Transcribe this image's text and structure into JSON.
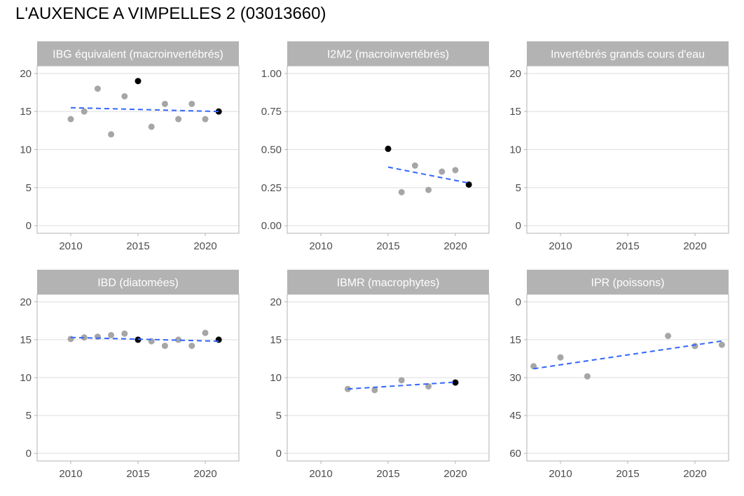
{
  "title": "L'AUXENCE A VIMPELLES 2 (03013660)",
  "colors": {
    "strip_bg": "#b3b3b3",
    "panel_border": "#b3b3b3",
    "grid": "#dedede",
    "point_gray": "#a6a6a6",
    "point_black": "#000000",
    "trend": "#3366ff"
  },
  "chart_data": [
    {
      "type": "scatter",
      "title": "IBG équivalent (macroinvertébrés)",
      "xlim": [
        2007.5,
        2022.5
      ],
      "ylim": [
        -1,
        21
      ],
      "xticks": [
        2010,
        2015,
        2020
      ],
      "yticks": [
        0,
        5,
        10,
        15,
        20
      ],
      "reverse_y": false,
      "points": [
        {
          "x": 2010,
          "y": 14,
          "highlight": false
        },
        {
          "x": 2011,
          "y": 15,
          "highlight": false
        },
        {
          "x": 2012,
          "y": 18,
          "highlight": false
        },
        {
          "x": 2013,
          "y": 12,
          "highlight": false
        },
        {
          "x": 2014,
          "y": 17,
          "highlight": false
        },
        {
          "x": 2015,
          "y": 19,
          "highlight": true
        },
        {
          "x": 2016,
          "y": 13,
          "highlight": false
        },
        {
          "x": 2017,
          "y": 16,
          "highlight": false
        },
        {
          "x": 2018,
          "y": 14,
          "highlight": false
        },
        {
          "x": 2019,
          "y": 16,
          "highlight": false
        },
        {
          "x": 2020,
          "y": 14,
          "highlight": false
        },
        {
          "x": 2021,
          "y": 15,
          "highlight": true
        }
      ],
      "trend": [
        [
          2010,
          15.5
        ],
        [
          2021,
          15.0
        ]
      ]
    },
    {
      "type": "scatter",
      "title": "I2M2 (macroinvertébrés)",
      "xlim": [
        2007.5,
        2022.5
      ],
      "ylim": [
        -0.05,
        1.05
      ],
      "xticks": [
        2010,
        2015,
        2020
      ],
      "yticks": [
        0,
        0.25,
        0.5,
        0.75,
        1
      ],
      "yticklabels": [
        "0.00",
        "0.25",
        "0.50",
        "0.75",
        "1.00"
      ],
      "reverse_y": false,
      "points": [
        {
          "x": 2015,
          "y": 0.505,
          "highlight": true
        },
        {
          "x": 2016,
          "y": 0.22,
          "highlight": false
        },
        {
          "x": 2017,
          "y": 0.395,
          "highlight": false
        },
        {
          "x": 2018,
          "y": 0.235,
          "highlight": false
        },
        {
          "x": 2019,
          "y": 0.355,
          "highlight": false
        },
        {
          "x": 2020,
          "y": 0.365,
          "highlight": false
        },
        {
          "x": 2021,
          "y": 0.27,
          "highlight": true
        }
      ],
      "trend": [
        [
          2015,
          0.385
        ],
        [
          2021,
          0.28
        ]
      ]
    },
    {
      "type": "scatter",
      "title": "Invertébrés grands cours d'eau",
      "xlim": [
        2007.5,
        2022.5
      ],
      "ylim": [
        -1,
        21
      ],
      "xticks": [
        2010,
        2015,
        2020
      ],
      "yticks": [
        0,
        5,
        10,
        15,
        20
      ],
      "reverse_y": false,
      "points": [],
      "trend": []
    },
    {
      "type": "scatter",
      "title": "IBD (diatomées)",
      "xlim": [
        2007.5,
        2022.5
      ],
      "ylim": [
        -1,
        21
      ],
      "xticks": [
        2010,
        2015,
        2020
      ],
      "yticks": [
        0,
        5,
        10,
        15,
        20
      ],
      "reverse_y": false,
      "points": [
        {
          "x": 2010,
          "y": 15.1,
          "highlight": false
        },
        {
          "x": 2011,
          "y": 15.3,
          "highlight": false
        },
        {
          "x": 2012,
          "y": 15.4,
          "highlight": false
        },
        {
          "x": 2013,
          "y": 15.6,
          "highlight": false
        },
        {
          "x": 2014,
          "y": 15.8,
          "highlight": false
        },
        {
          "x": 2015,
          "y": 15.0,
          "highlight": true
        },
        {
          "x": 2016,
          "y": 14.8,
          "highlight": false
        },
        {
          "x": 2017,
          "y": 14.2,
          "highlight": false
        },
        {
          "x": 2018,
          "y": 15.0,
          "highlight": false
        },
        {
          "x": 2019,
          "y": 14.2,
          "highlight": false
        },
        {
          "x": 2020,
          "y": 15.9,
          "highlight": false
        },
        {
          "x": 2021,
          "y": 15.0,
          "highlight": true
        }
      ],
      "trend": [
        [
          2010,
          15.3
        ],
        [
          2021,
          14.8
        ]
      ]
    },
    {
      "type": "scatter",
      "title": "IBMR (macrophytes)",
      "xlim": [
        2007.5,
        2022.5
      ],
      "ylim": [
        -1,
        21
      ],
      "xticks": [
        2010,
        2015,
        2020
      ],
      "yticks": [
        0,
        5,
        10,
        15,
        20
      ],
      "reverse_y": false,
      "points": [
        {
          "x": 2012,
          "y": 8.5,
          "highlight": false
        },
        {
          "x": 2014,
          "y": 8.35,
          "highlight": false
        },
        {
          "x": 2016,
          "y": 9.65,
          "highlight": false
        },
        {
          "x": 2018,
          "y": 8.85,
          "highlight": false
        },
        {
          "x": 2020,
          "y": 9.35,
          "highlight": true
        }
      ],
      "trend": [
        [
          2012,
          8.5
        ],
        [
          2020,
          9.4
        ]
      ]
    },
    {
      "type": "scatter",
      "title": "IPR (poissons)",
      "xlim": [
        2007.5,
        2022.5
      ],
      "ylim": [
        -3,
        63
      ],
      "xticks": [
        2010,
        2015,
        2020
      ],
      "yticks": [
        0,
        15,
        30,
        45,
        60
      ],
      "reverse_y": true,
      "points": [
        {
          "x": 2008,
          "y": 25.5,
          "highlight": false
        },
        {
          "x": 2010,
          "y": 22,
          "highlight": false
        },
        {
          "x": 2012,
          "y": 29.5,
          "highlight": false
        },
        {
          "x": 2018,
          "y": 13.5,
          "highlight": false
        },
        {
          "x": 2020,
          "y": 17.5,
          "highlight": false
        },
        {
          "x": 2022,
          "y": 17.0,
          "highlight": false
        }
      ],
      "trend": [
        [
          2008,
          26.5
        ],
        [
          2022,
          15.5
        ]
      ]
    }
  ]
}
